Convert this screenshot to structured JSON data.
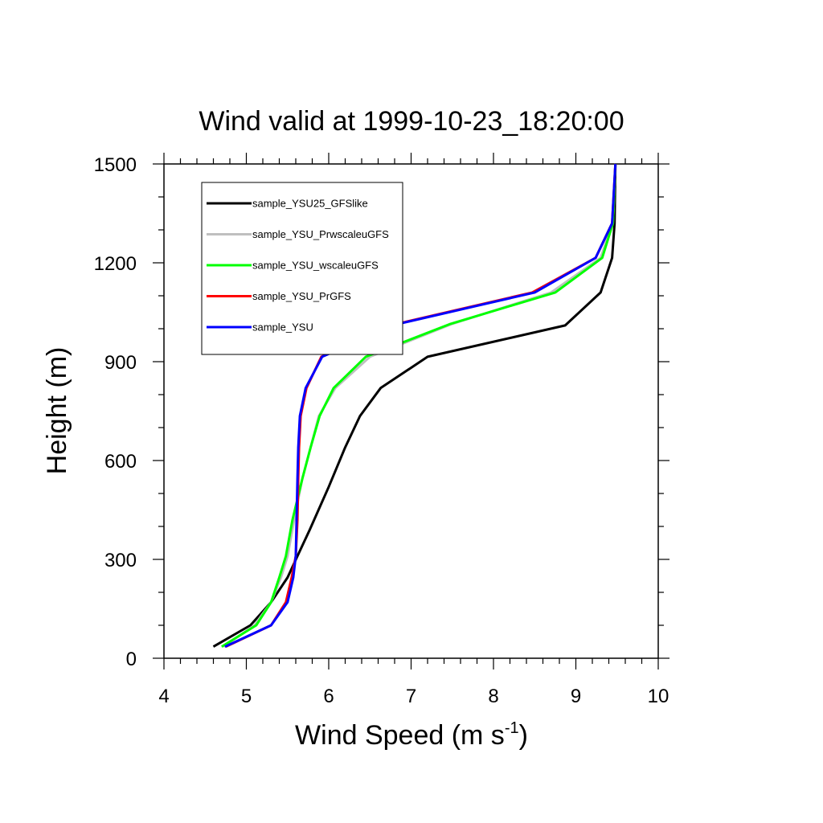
{
  "chart_data": {
    "type": "line",
    "title": "Wind valid at 1999-10-23_18:20:00",
    "xlabel": "Wind Speed (m s",
    "xlabel_superscript": "-1",
    "xlabel_suffix": ")",
    "ylabel": "Height (m)",
    "xlim": [
      4,
      10
    ],
    "ylim": [
      0,
      1500
    ],
    "xticks": [
      4,
      5,
      6,
      7,
      8,
      9,
      10
    ],
    "yticks": [
      0,
      300,
      600,
      900,
      1200,
      1500
    ],
    "grid": false,
    "legend_position": "top-left",
    "series": [
      {
        "name": "sample_YSU25_GFSlike",
        "color": "#000000",
        "points": [
          [
            4.6,
            35
          ],
          [
            5.05,
            100
          ],
          [
            5.3,
            170
          ],
          [
            5.5,
            245
          ],
          [
            5.62,
            310
          ],
          [
            5.77,
            390
          ],
          [
            6.0,
            520
          ],
          [
            6.2,
            640
          ],
          [
            6.38,
            735
          ],
          [
            6.63,
            820
          ],
          [
            7.2,
            915
          ],
          [
            8.87,
            1010
          ],
          [
            9.3,
            1110
          ],
          [
            9.44,
            1215
          ],
          [
            9.47,
            1320
          ],
          [
            9.48,
            1500
          ]
        ]
      },
      {
        "name": "sample_YSU_PrwscaleuGFS",
        "color": "#bfbfbf",
        "points": [
          [
            4.72,
            35
          ],
          [
            5.1,
            100
          ],
          [
            5.3,
            170
          ],
          [
            5.42,
            245
          ],
          [
            5.5,
            310
          ],
          [
            5.58,
            420
          ],
          [
            5.68,
            545
          ],
          [
            5.78,
            640
          ],
          [
            5.88,
            735
          ],
          [
            6.08,
            820
          ],
          [
            6.5,
            915
          ],
          [
            7.5,
            1015
          ],
          [
            8.7,
            1110
          ],
          [
            9.3,
            1215
          ],
          [
            9.45,
            1320
          ],
          [
            9.48,
            1500
          ]
        ]
      },
      {
        "name": "sample_YSU_wscaleuGFS",
        "color": "#00ff00",
        "points": [
          [
            4.7,
            35
          ],
          [
            5.12,
            100
          ],
          [
            5.3,
            170
          ],
          [
            5.4,
            245
          ],
          [
            5.48,
            310
          ],
          [
            5.56,
            420
          ],
          [
            5.68,
            545
          ],
          [
            5.78,
            640
          ],
          [
            5.89,
            735
          ],
          [
            6.06,
            820
          ],
          [
            6.45,
            915
          ],
          [
            7.48,
            1015
          ],
          [
            8.75,
            1110
          ],
          [
            9.32,
            1215
          ],
          [
            9.45,
            1320
          ],
          [
            9.48,
            1500
          ]
        ]
      },
      {
        "name": "sample_YSU_PrGFS",
        "color": "#ff0000",
        "points": [
          [
            4.75,
            35
          ],
          [
            5.3,
            100
          ],
          [
            5.48,
            170
          ],
          [
            5.55,
            245
          ],
          [
            5.6,
            310
          ],
          [
            5.62,
            420
          ],
          [
            5.63,
            545
          ],
          [
            5.64,
            640
          ],
          [
            5.66,
            735
          ],
          [
            5.73,
            820
          ],
          [
            5.91,
            915
          ],
          [
            6.83,
            1015
          ],
          [
            8.47,
            1110
          ],
          [
            9.24,
            1215
          ],
          [
            9.44,
            1320
          ],
          [
            9.48,
            1500
          ]
        ]
      },
      {
        "name": "sample_YSU",
        "color": "#0000ff",
        "points": [
          [
            4.74,
            35
          ],
          [
            5.3,
            100
          ],
          [
            5.5,
            170
          ],
          [
            5.57,
            245
          ],
          [
            5.6,
            310
          ],
          [
            5.61,
            420
          ],
          [
            5.62,
            545
          ],
          [
            5.63,
            640
          ],
          [
            5.65,
            735
          ],
          [
            5.72,
            820
          ],
          [
            5.92,
            915
          ],
          [
            6.85,
            1015
          ],
          [
            8.5,
            1110
          ],
          [
            9.24,
            1215
          ],
          [
            9.44,
            1320
          ],
          [
            9.48,
            1500
          ]
        ]
      }
    ]
  }
}
